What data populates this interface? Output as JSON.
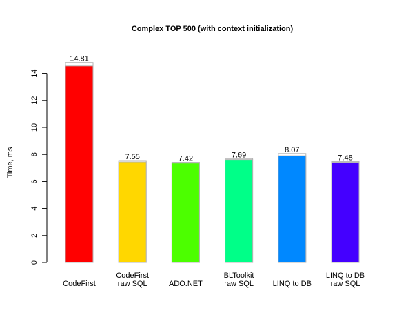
{
  "chart_data": {
    "type": "bar",
    "title": "Complex TOP 500 (with context initialization)",
    "ylabel": "Time, ms",
    "xlabel": "",
    "ylim": [
      0,
      15
    ],
    "yticks": [
      0,
      2,
      4,
      6,
      8,
      10,
      12,
      14
    ],
    "grid": false,
    "categories": [
      [
        "CodeFirst"
      ],
      [
        "CodeFirst",
        "raw SQL"
      ],
      [
        "ADO.NET"
      ],
      [
        "BLToolkit",
        "raw SQL"
      ],
      [
        "LINQ to DB"
      ],
      [
        "LINQ to DB",
        "raw SQL"
      ]
    ],
    "series": [
      {
        "values": [
          14.81,
          7.55,
          7.42,
          7.69,
          8.07,
          7.48
        ],
        "base_values": [
          14.55,
          7.45,
          7.36,
          7.62,
          7.9,
          7.42
        ]
      }
    ],
    "data_labels": [
      "14.81",
      "7.55",
      "7.42",
      "7.69",
      "8.07",
      "7.48"
    ],
    "colors": [
      "#ff0000",
      "#ffd700",
      "#4cff00",
      "#00ff88",
      "#0088ff",
      "#4400ff"
    ],
    "overlay_color": "#ffffff",
    "overlay_stroke": "#b3b3b3"
  }
}
